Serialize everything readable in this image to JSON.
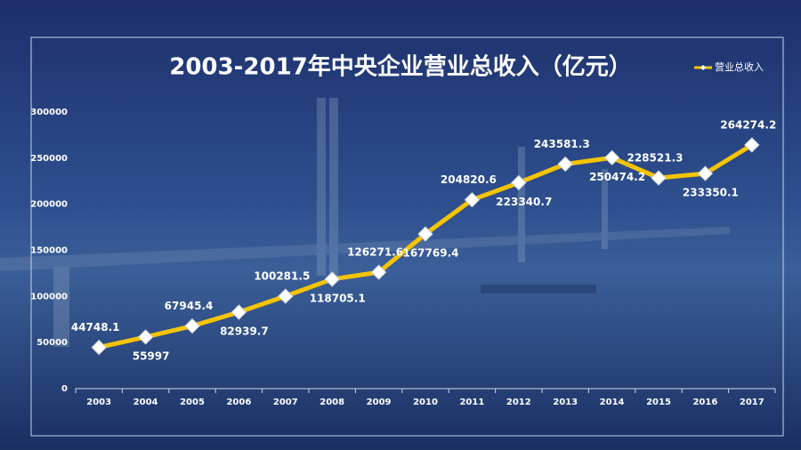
{
  "chart_data": {
    "type": "line",
    "title": "2003-2017年中央企业营业总收入（亿元）",
    "categories": [
      "2003",
      "2004",
      "2005",
      "2006",
      "2007",
      "2008",
      "2009",
      "2010",
      "2011",
      "2012",
      "2013",
      "2014",
      "2015",
      "2016",
      "2017"
    ],
    "series": [
      {
        "name": "营业总收入",
        "color": "#f5c400",
        "values": [
          44748.1,
          55997,
          67945.4,
          82939.7,
          100281.5,
          118705.1,
          126271.6,
          167769.4,
          204820.6,
          223340.7,
          243581.3,
          250474.2,
          228521.3,
          233350.1,
          264274.2
        ]
      }
    ],
    "ylim": [
      0,
      300000
    ],
    "yticks": [
      0,
      50000,
      100000,
      150000,
      200000,
      250000,
      300000
    ],
    "grid": false,
    "legend": "top-right"
  }
}
